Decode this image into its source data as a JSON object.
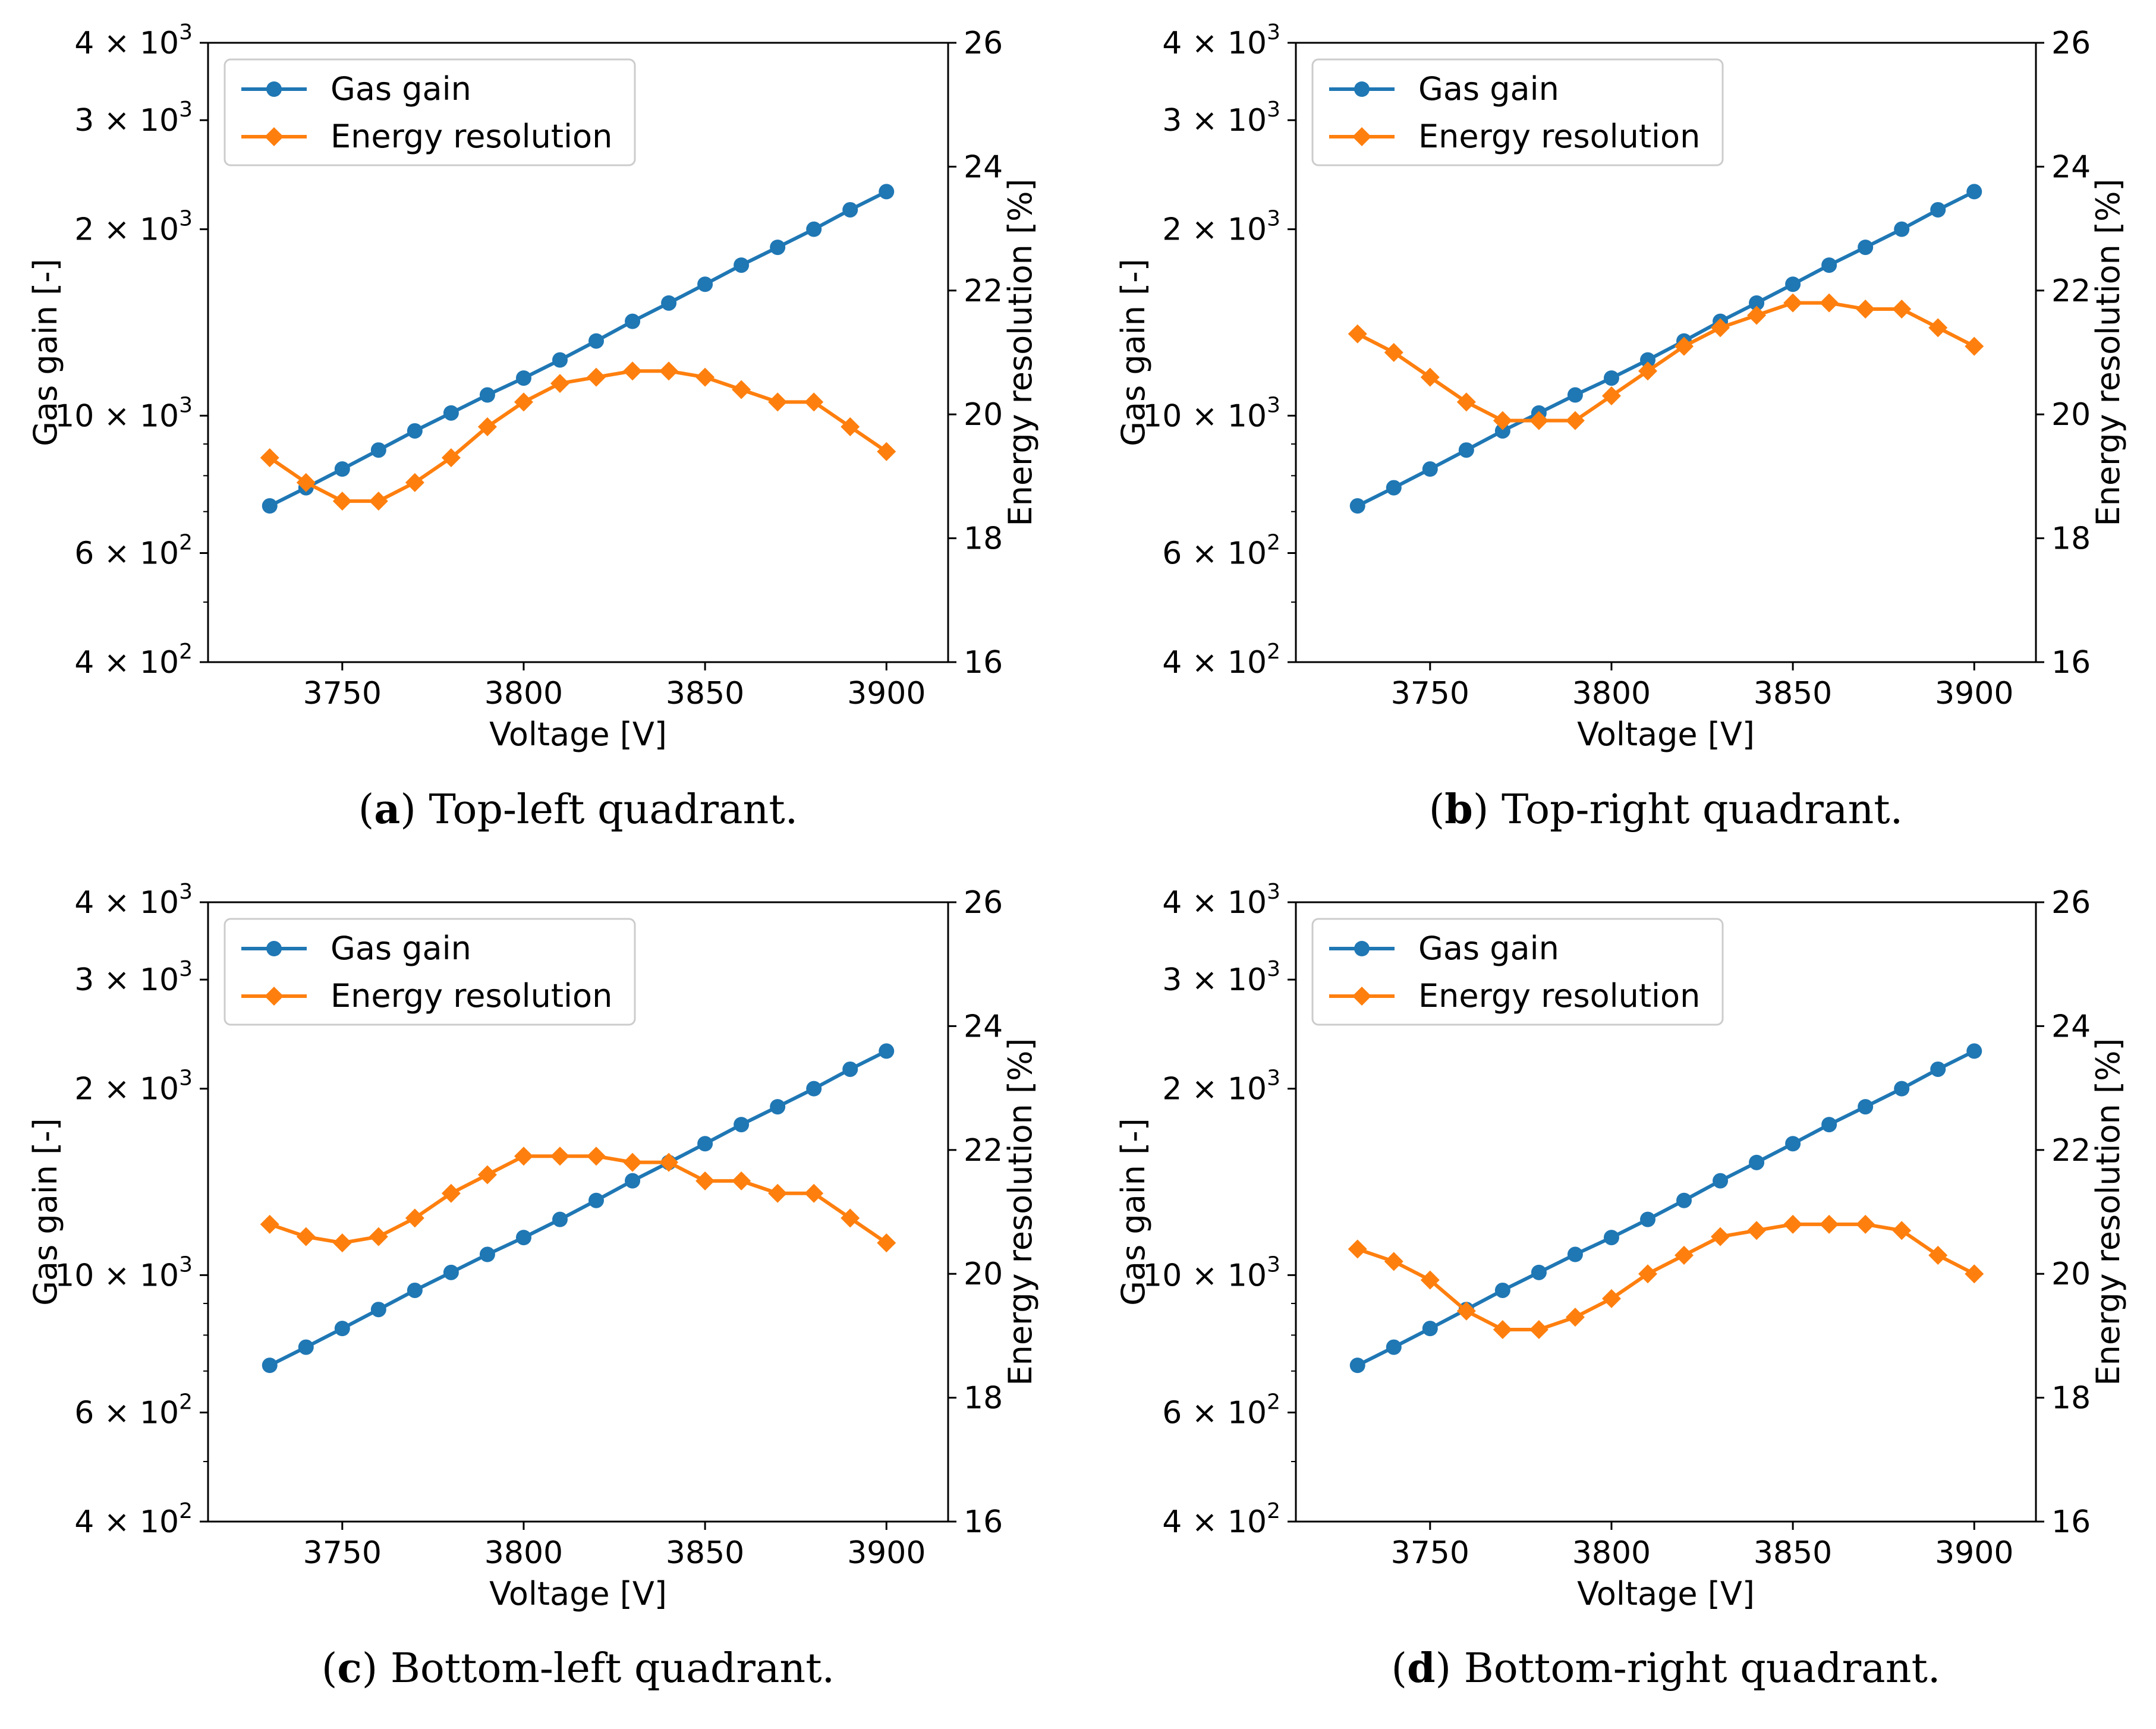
{
  "colors": {
    "gas_gain": "#1f77b4",
    "energy_resolution": "#ff7f0e"
  },
  "chart_data": [
    {
      "type": "line",
      "caption_letter": "a",
      "caption_text": " Top-left quadrant.",
      "xlabel": "Voltage [V]",
      "ylabel": "Gas gain [-]",
      "y2label": "Energy resolution [%]",
      "xlim": [
        3713,
        3917
      ],
      "xticks": [
        3750,
        3800,
        3850,
        3900
      ],
      "ylim": [
        400,
        4000
      ],
      "yscale": "log",
      "yticks": [
        400,
        600,
        1000,
        2000,
        3000,
        4000
      ],
      "yticklabels": [
        [
          "4",
          "2"
        ],
        [
          "6",
          "2"
        ],
        [
          "10",
          "3"
        ],
        [
          "2",
          "3"
        ],
        [
          "3",
          "3"
        ],
        [
          "4",
          "3"
        ]
      ],
      "y2lim": [
        16,
        26
      ],
      "y2ticks": [
        16,
        18,
        20,
        22,
        24,
        26
      ],
      "legend_location": "upper-left",
      "x": [
        3730,
        3740,
        3750,
        3760,
        3770,
        3780,
        3790,
        3800,
        3810,
        3820,
        3830,
        3840,
        3850,
        3860,
        3870,
        3880,
        3890,
        3900
      ],
      "series": [
        {
          "name": "Gas gain",
          "axis": "left",
          "marker": "circle",
          "values": [
            715,
            765,
            820,
            880,
            945,
            1010,
            1080,
            1150,
            1230,
            1320,
            1420,
            1520,
            1630,
            1750,
            1870,
            2000,
            2150,
            2300
          ]
        },
        {
          "name": "Energy resolution",
          "axis": "right",
          "marker": "diamond",
          "values": [
            19.3,
            18.9,
            18.6,
            18.6,
            18.9,
            19.3,
            19.8,
            20.2,
            20.5,
            20.6,
            20.7,
            20.7,
            20.6,
            20.4,
            20.2,
            20.2,
            19.8,
            19.4
          ]
        }
      ]
    },
    {
      "type": "line",
      "caption_letter": "b",
      "caption_text": " Top-right quadrant.",
      "xlabel": "Voltage [V]",
      "ylabel": "Gas gain [-]",
      "y2label": "Energy resolution [%]",
      "xlim": [
        3713,
        3917
      ],
      "xticks": [
        3750,
        3800,
        3850,
        3900
      ],
      "ylim": [
        400,
        4000
      ],
      "yscale": "log",
      "yticks": [
        400,
        600,
        1000,
        2000,
        3000,
        4000
      ],
      "yticklabels": [
        [
          "4",
          "2"
        ],
        [
          "6",
          "2"
        ],
        [
          "10",
          "3"
        ],
        [
          "2",
          "3"
        ],
        [
          "3",
          "3"
        ],
        [
          "4",
          "3"
        ]
      ],
      "y2lim": [
        16,
        26
      ],
      "y2ticks": [
        16,
        18,
        20,
        22,
        24,
        26
      ],
      "legend_location": "upper-left",
      "x": [
        3730,
        3740,
        3750,
        3760,
        3770,
        3780,
        3790,
        3800,
        3810,
        3820,
        3830,
        3840,
        3850,
        3860,
        3870,
        3880,
        3890,
        3900
      ],
      "series": [
        {
          "name": "Gas gain",
          "axis": "left",
          "marker": "circle",
          "values": [
            715,
            765,
            820,
            880,
            945,
            1010,
            1080,
            1150,
            1230,
            1320,
            1420,
            1520,
            1630,
            1750,
            1870,
            2000,
            2150,
            2300
          ]
        },
        {
          "name": "Energy resolution",
          "axis": "right",
          "marker": "diamond",
          "values": [
            21.3,
            21.0,
            20.6,
            20.2,
            19.9,
            19.9,
            19.9,
            20.3,
            20.7,
            21.1,
            21.4,
            21.6,
            21.8,
            21.8,
            21.7,
            21.7,
            21.4,
            21.1
          ]
        }
      ]
    },
    {
      "type": "line",
      "caption_letter": "c",
      "caption_text": " Bottom-left quadrant.",
      "xlabel": "Voltage [V]",
      "ylabel": "Gas gain [-]",
      "y2label": "Energy resolution [%]",
      "xlim": [
        3713,
        3917
      ],
      "xticks": [
        3750,
        3800,
        3850,
        3900
      ],
      "ylim": [
        400,
        4000
      ],
      "yscale": "log",
      "yticks": [
        400,
        600,
        1000,
        2000,
        3000,
        4000
      ],
      "yticklabels": [
        [
          "4",
          "2"
        ],
        [
          "6",
          "2"
        ],
        [
          "10",
          "3"
        ],
        [
          "2",
          "3"
        ],
        [
          "3",
          "3"
        ],
        [
          "4",
          "3"
        ]
      ],
      "y2lim": [
        16,
        26
      ],
      "y2ticks": [
        16,
        18,
        20,
        22,
        24,
        26
      ],
      "legend_location": "upper-left",
      "x": [
        3730,
        3740,
        3750,
        3760,
        3770,
        3780,
        3790,
        3800,
        3810,
        3820,
        3830,
        3840,
        3850,
        3860,
        3870,
        3880,
        3890,
        3900
      ],
      "series": [
        {
          "name": "Gas gain",
          "axis": "left",
          "marker": "circle",
          "values": [
            715,
            765,
            820,
            880,
            945,
            1010,
            1080,
            1150,
            1230,
            1320,
            1420,
            1520,
            1630,
            1750,
            1870,
            2000,
            2150,
            2300
          ]
        },
        {
          "name": "Energy resolution",
          "axis": "right",
          "marker": "diamond",
          "values": [
            20.8,
            20.6,
            20.5,
            20.6,
            20.9,
            21.3,
            21.6,
            21.9,
            21.9,
            21.9,
            21.8,
            21.8,
            21.5,
            21.5,
            21.3,
            21.3,
            20.9,
            20.5
          ]
        }
      ]
    },
    {
      "type": "line",
      "caption_letter": "d",
      "caption_text": " Bottom-right quadrant.",
      "xlabel": "Voltage [V]",
      "ylabel": "Gas gain [-]",
      "y2label": "Energy resolution [%]",
      "xlim": [
        3713,
        3917
      ],
      "xticks": [
        3750,
        3800,
        3850,
        3900
      ],
      "ylim": [
        400,
        4000
      ],
      "yscale": "log",
      "yticks": [
        400,
        600,
        1000,
        2000,
        3000,
        4000
      ],
      "yticklabels": [
        [
          "4",
          "2"
        ],
        [
          "6",
          "2"
        ],
        [
          "10",
          "3"
        ],
        [
          "2",
          "3"
        ],
        [
          "3",
          "3"
        ],
        [
          "4",
          "3"
        ]
      ],
      "y2lim": [
        16,
        26
      ],
      "y2ticks": [
        16,
        18,
        20,
        22,
        24,
        26
      ],
      "legend_location": "upper-left",
      "x": [
        3730,
        3740,
        3750,
        3760,
        3770,
        3780,
        3790,
        3800,
        3810,
        3820,
        3830,
        3840,
        3850,
        3860,
        3870,
        3880,
        3890,
        3900
      ],
      "series": [
        {
          "name": "Gas gain",
          "axis": "left",
          "marker": "circle",
          "values": [
            715,
            765,
            820,
            880,
            945,
            1010,
            1080,
            1150,
            1230,
            1320,
            1420,
            1520,
            1630,
            1750,
            1870,
            2000,
            2150,
            2300
          ]
        },
        {
          "name": "Energy resolution",
          "axis": "right",
          "marker": "diamond",
          "values": [
            20.4,
            20.2,
            19.9,
            19.4,
            19.1,
            19.1,
            19.3,
            19.6,
            20.0,
            20.3,
            20.6,
            20.7,
            20.8,
            20.8,
            20.8,
            20.7,
            20.3,
            20.0
          ]
        }
      ]
    }
  ]
}
